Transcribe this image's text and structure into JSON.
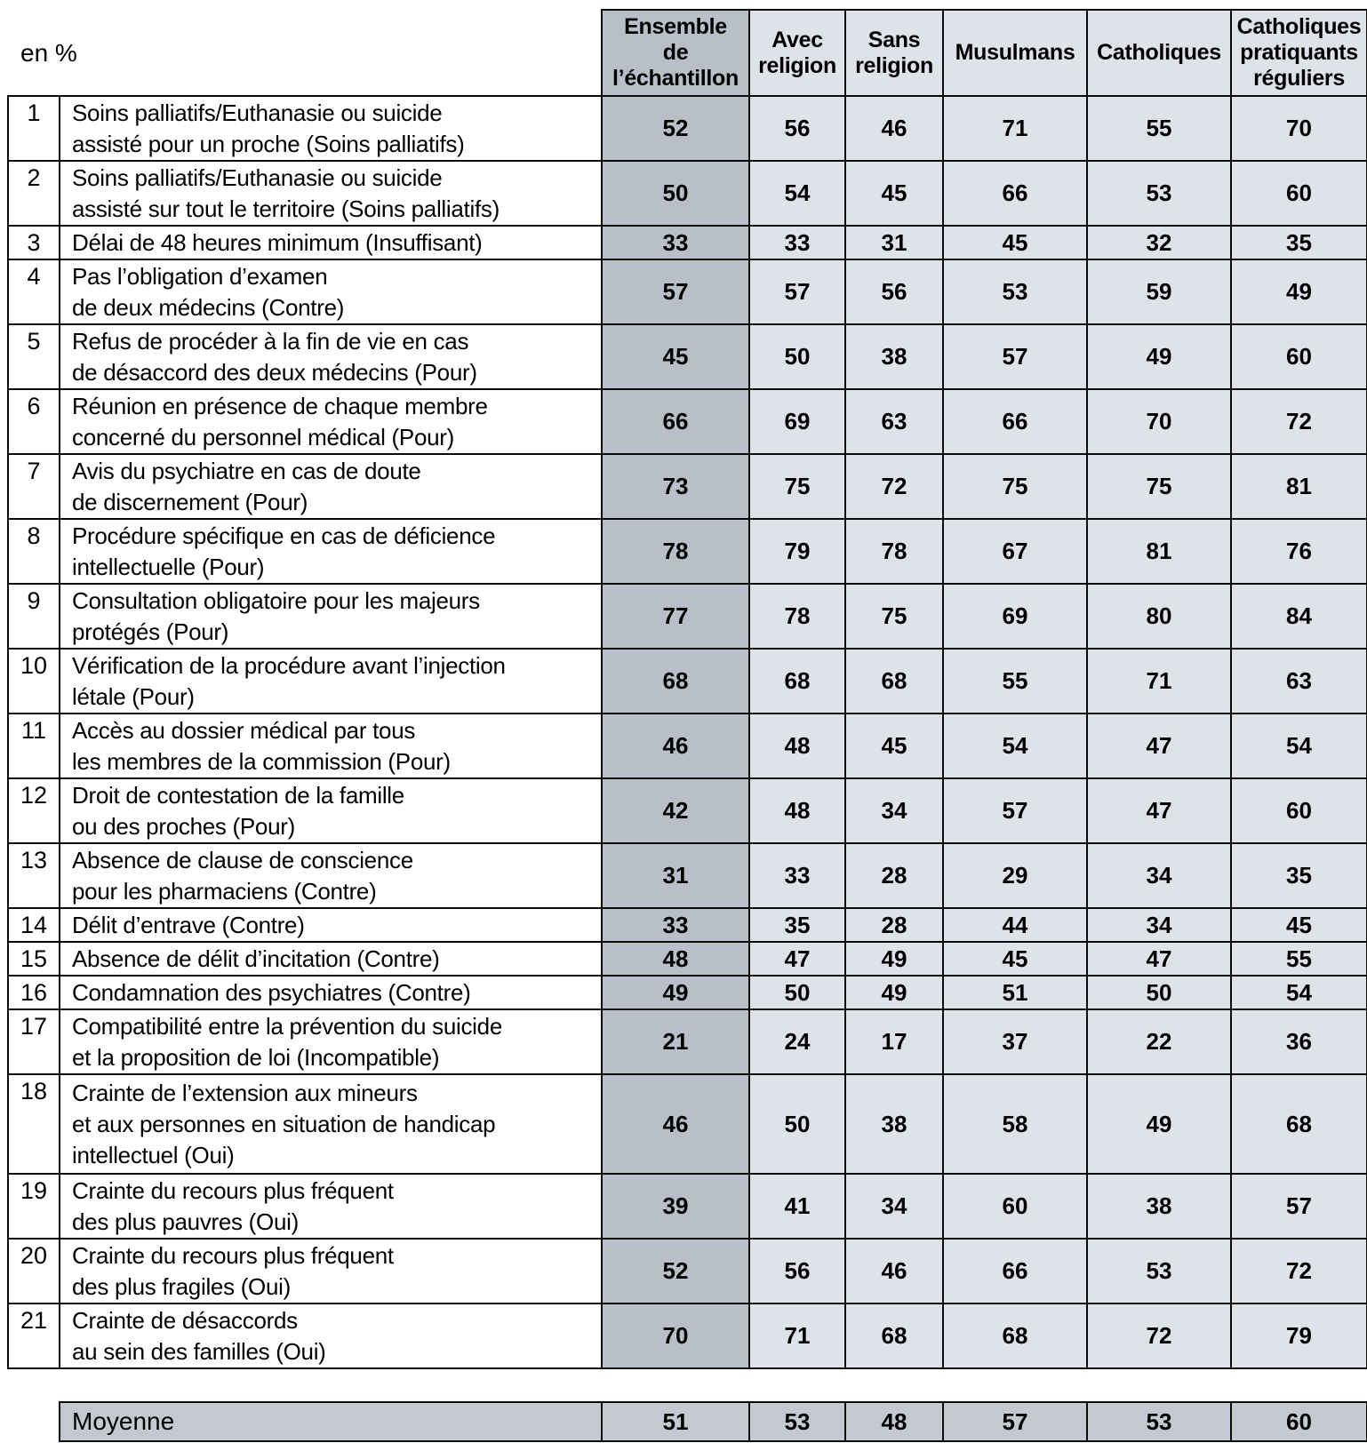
{
  "chart_data": {
    "type": "table",
    "unit_label": "en %",
    "columns": [
      "Ensemble\nde\nl’échantillon",
      "Avec\nreligion",
      "Sans\nreligion",
      "Musulmans",
      "Catholiques",
      "Catholiques\npratiquants\nréguliers"
    ],
    "rows": [
      {
        "num": 1,
        "label": "Soins palliatifs/Euthanasie ou suicide\nassisté pour un proche (Soins palliatifs)",
        "values": [
          52,
          56,
          46,
          71,
          55,
          70
        ]
      },
      {
        "num": 2,
        "label": "Soins palliatifs/Euthanasie ou suicide\nassisté sur tout le territoire (Soins palliatifs)",
        "values": [
          50,
          54,
          45,
          66,
          53,
          60
        ]
      },
      {
        "num": 3,
        "label": "Délai de 48 heures minimum (Insuffisant)",
        "values": [
          33,
          33,
          31,
          45,
          32,
          35
        ]
      },
      {
        "num": 4,
        "label": "Pas l’obligation d’examen\nde deux médecins (Contre)",
        "values": [
          57,
          57,
          56,
          53,
          59,
          49
        ]
      },
      {
        "num": 5,
        "label": "Refus de procéder à la fin de vie en cas\nde désaccord des deux médecins (Pour)",
        "values": [
          45,
          50,
          38,
          57,
          49,
          60
        ]
      },
      {
        "num": 6,
        "label": "Réunion en présence de chaque membre\nconcerné du personnel médical (Pour)",
        "values": [
          66,
          69,
          63,
          66,
          70,
          72
        ]
      },
      {
        "num": 7,
        "label": "Avis du psychiatre en cas de doute\nde discernement (Pour)",
        "values": [
          73,
          75,
          72,
          75,
          75,
          81
        ]
      },
      {
        "num": 8,
        "label": "Procédure spécifique en cas de déficience\nintellectuelle (Pour)",
        "values": [
          78,
          79,
          78,
          67,
          81,
          76
        ]
      },
      {
        "num": 9,
        "label": "Consultation obligatoire pour les majeurs\nprotégés (Pour)",
        "values": [
          77,
          78,
          75,
          69,
          80,
          84
        ]
      },
      {
        "num": 10,
        "label": "Vérification de la procédure avant l’injection\nlétale (Pour)",
        "values": [
          68,
          68,
          68,
          55,
          71,
          63
        ]
      },
      {
        "num": 11,
        "label": "Accès au dossier médical par tous\nles membres de la commission (Pour)",
        "values": [
          46,
          48,
          45,
          54,
          47,
          54
        ]
      },
      {
        "num": 12,
        "label": "Droit de contestation de la famille\nou des proches (Pour)",
        "values": [
          42,
          48,
          34,
          57,
          47,
          60
        ]
      },
      {
        "num": 13,
        "label": "Absence de clause de conscience\npour les pharmaciens (Contre)",
        "values": [
          31,
          33,
          28,
          29,
          34,
          35
        ]
      },
      {
        "num": 14,
        "label": "Délit d’entrave (Contre)",
        "values": [
          33,
          35,
          28,
          44,
          34,
          45
        ]
      },
      {
        "num": 15,
        "label": "Absence de délit d’incitation (Contre)",
        "values": [
          48,
          47,
          49,
          45,
          47,
          55
        ]
      },
      {
        "num": 16,
        "label": "Condamnation des psychiatres (Contre)",
        "values": [
          49,
          50,
          49,
          51,
          50,
          54
        ]
      },
      {
        "num": 17,
        "label": "Compatibilité entre la prévention du suicide\net la proposition de loi (Incompatible)",
        "values": [
          21,
          24,
          17,
          37,
          22,
          36
        ]
      },
      {
        "num": 18,
        "label": "Crainte de l’extension aux mineurs\net aux personnes en situation de handicap\nintellectuel (Oui)",
        "values": [
          46,
          50,
          38,
          58,
          49,
          68
        ]
      },
      {
        "num": 19,
        "label": "Crainte du recours plus fréquent\ndes plus pauvres (Oui)",
        "values": [
          39,
          41,
          34,
          60,
          38,
          57
        ]
      },
      {
        "num": 20,
        "label": "Crainte du recours plus fréquent\ndes plus fragiles (Oui)",
        "values": [
          52,
          56,
          46,
          66,
          53,
          72
        ]
      },
      {
        "num": 21,
        "label": "Crainte de désaccords\nau sein des familles (Oui)",
        "values": [
          70,
          71,
          68,
          68,
          72,
          79
        ]
      }
    ],
    "average": {
      "label": "Moyenne",
      "values": [
        51,
        53,
        48,
        57,
        53,
        60
      ]
    }
  },
  "colors": {
    "ensemble_column_bg": "#b9bfc9",
    "value_cell_bg": "#dfe2e9",
    "average_row_bg": "#c4c8d0",
    "border": "#0a0a0a",
    "text": "#000000",
    "page_bg": "#ffffff"
  }
}
